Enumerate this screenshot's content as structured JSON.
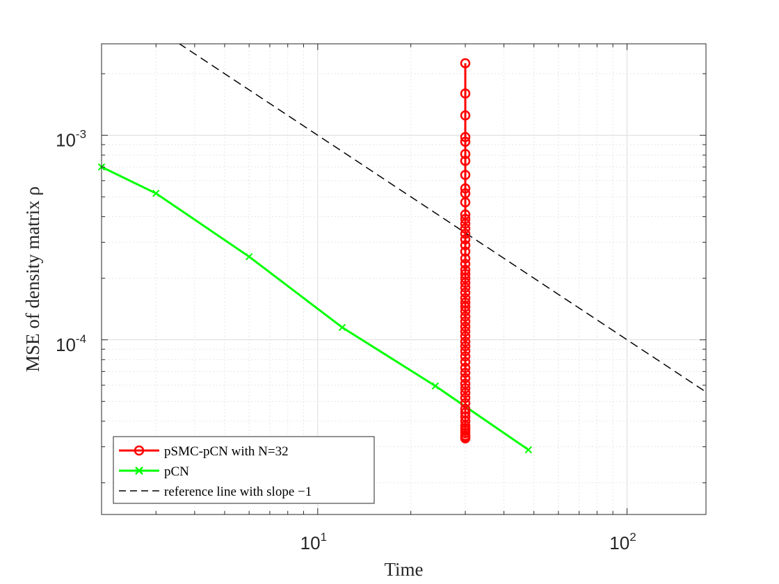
{
  "chart_data": {
    "type": "line",
    "title": "",
    "xlabel": "Time",
    "ylabel": "MSE of density matrix ρ",
    "xscale": "log",
    "yscale": "log",
    "xlim": [
      2,
      180
    ],
    "ylim": [
      1.4e-05,
      0.0028
    ],
    "grid": true,
    "minor_grid": true,
    "legend_position": "bottom-left",
    "x_ticks": [
      {
        "value": 10,
        "base": "10",
        "exp": "1"
      },
      {
        "value": 100,
        "base": "10",
        "exp": "2"
      }
    ],
    "y_ticks": [
      {
        "value": 0.001,
        "base": "10",
        "exp": "-3"
      },
      {
        "value": 0.0001,
        "base": "10",
        "exp": "-4"
      }
    ],
    "series": [
      {
        "name": "pSMC-pCN with N=32",
        "color": "#ff0000",
        "marker": "circle",
        "x": [
          30,
          30,
          30,
          30,
          30,
          30,
          30,
          30,
          30,
          30,
          30,
          30,
          30,
          30,
          30,
          30,
          30,
          30,
          30,
          30,
          30,
          30,
          30,
          30,
          30,
          30,
          30,
          30,
          30,
          30,
          30,
          30,
          30,
          30,
          30,
          30,
          30,
          30,
          30,
          30,
          30,
          30,
          30,
          30,
          30,
          30,
          30,
          30,
          30,
          30,
          30,
          30,
          30,
          30,
          30,
          30,
          30,
          30,
          30,
          30
        ],
        "y": [
          0.00225,
          0.0016,
          0.00125,
          0.00098,
          0.00093,
          0.00081,
          0.00075,
          0.00064,
          0.00055,
          0.00052,
          0.00047,
          0.00041,
          0.00039,
          0.00037,
          0.00035,
          0.00033,
          0.00031,
          0.00029,
          0.00027,
          0.00025,
          0.000235,
          0.00022,
          0.00021,
          0.0002,
          0.00019,
          0.00018,
          0.00017,
          0.00016,
          0.000152,
          0.000145,
          0.000138,
          0.00013,
          0.000123,
          0.000116,
          0.00011,
          0.000104,
          9.8e-05,
          9.3e-05,
          8.8e-05,
          8.3e-05,
          7.8e-05,
          7.3e-05,
          6.9e-05,
          6.5e-05,
          6.1e-05,
          5.8e-05,
          5.5e-05,
          5.2e-05,
          4.9e-05,
          4.6e-05,
          4.4e-05,
          4.2e-05,
          4e-05,
          3.8e-05,
          3.7e-05,
          3.6e-05,
          3.5e-05,
          3.4e-05,
          3.35e-05,
          3.3e-05
        ]
      },
      {
        "name": "pCN",
        "color": "#00ff00",
        "marker": "x",
        "x": [
          2,
          3,
          6,
          12,
          24,
          48
        ],
        "y": [
          0.0007,
          0.00052,
          0.000255,
          0.000115,
          5.95e-05,
          2.9e-05
        ]
      },
      {
        "name": "reference line with slope −1",
        "color": "#000000",
        "marker": "none",
        "dash": "dashed",
        "x": [
          2,
          180
        ],
        "y": [
          0.005,
          5.56e-05
        ]
      }
    ]
  }
}
